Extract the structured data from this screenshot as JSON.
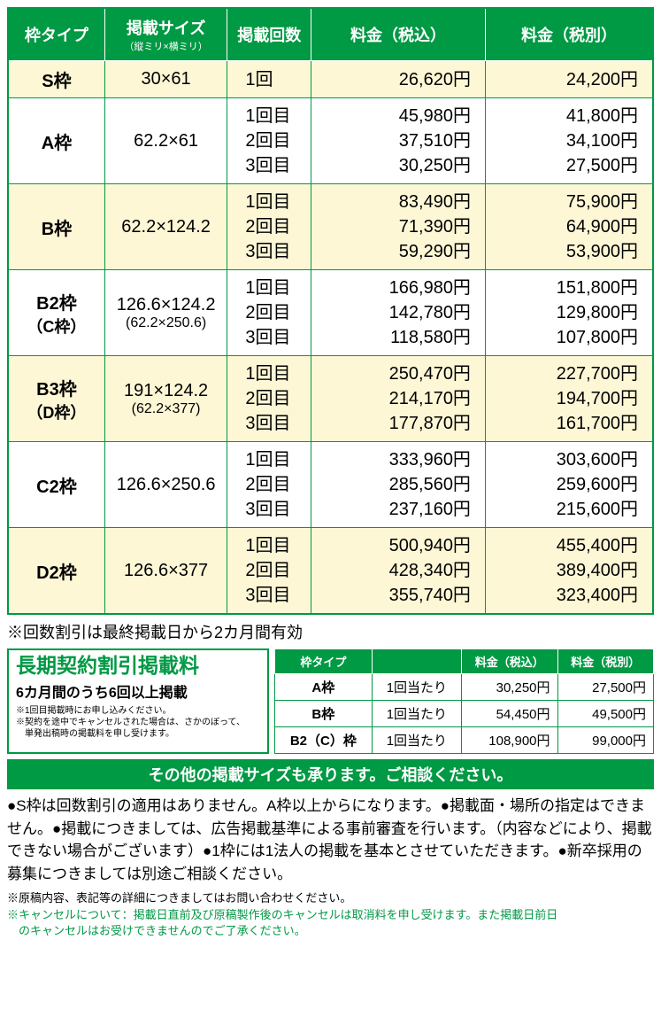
{
  "mainTable": {
    "headers": {
      "type": "枠タイプ",
      "size": "掲載サイズ",
      "sizeSub": "（縦ミリ×横ミリ）",
      "times": "掲載回数",
      "price1": "料金（税込）",
      "price2": "料金（税別）"
    },
    "rows": [
      {
        "alt": true,
        "type": "S枠",
        "size": "30×61",
        "times": [
          "1回"
        ],
        "price1": [
          "26,620円"
        ],
        "price2": [
          "24,200円"
        ]
      },
      {
        "alt": false,
        "type": "A枠",
        "size": "62.2×61",
        "times": [
          "1回目",
          "2回目",
          "3回目"
        ],
        "price1": [
          "45,980円",
          "37,510円",
          "30,250円"
        ],
        "price2": [
          "41,800円",
          "34,100円",
          "27,500円"
        ]
      },
      {
        "alt": true,
        "type": "B枠",
        "size": "62.2×124.2",
        "times": [
          "1回目",
          "2回目",
          "3回目"
        ],
        "price1": [
          "83,490円",
          "71,390円",
          "59,290円"
        ],
        "price2": [
          "75,900円",
          "64,900円",
          "53,900円"
        ]
      },
      {
        "alt": false,
        "type": "B2枠",
        "typeSub": "（C枠）",
        "size": "126.6×124.2",
        "sizeSub": "(62.2×250.6)",
        "times": [
          "1回目",
          "2回目",
          "3回目"
        ],
        "price1": [
          "166,980円",
          "142,780円",
          "118,580円"
        ],
        "price2": [
          "151,800円",
          "129,800円",
          "107,800円"
        ]
      },
      {
        "alt": true,
        "type": "B3枠",
        "typeSub": "（D枠）",
        "size": "191×124.2",
        "sizeSub": "(62.2×377)",
        "times": [
          "1回目",
          "2回目",
          "3回目"
        ],
        "price1": [
          "250,470円",
          "214,170円",
          "177,870円"
        ],
        "price2": [
          "227,700円",
          "194,700円",
          "161,700円"
        ]
      },
      {
        "alt": false,
        "type": "C2枠",
        "size": "126.6×250.6",
        "times": [
          "1回目",
          "2回目",
          "3回目"
        ],
        "price1": [
          "333,960円",
          "285,560円",
          "237,160円"
        ],
        "price2": [
          "303,600円",
          "259,600円",
          "215,600円"
        ]
      },
      {
        "alt": true,
        "type": "D2枠",
        "size": "126.6×377",
        "times": [
          "1回目",
          "2回目",
          "3回目"
        ],
        "price1": [
          "500,940円",
          "428,340円",
          "355,740円"
        ],
        "price2": [
          "455,400円",
          "389,400円",
          "323,400円"
        ]
      }
    ]
  },
  "note1": "※回数割引は最終掲載日から2カ月間有効",
  "longTerm": {
    "title": "長期契約割引掲載料",
    "sub": "6カ月間のうち6回以上掲載",
    "notes": [
      "※1回目掲載時にお申し込みください。",
      "※契約を途中でキャンセルされた場合は、さかのぼって、",
      "　単発出稿時の掲載料を申し受けます。"
    ],
    "headers": {
      "type": "枠タイプ",
      "price1": "料金（税込）",
      "price2": "料金（税別）"
    },
    "perLabel": "1回当たり",
    "rows": [
      {
        "type": "A枠",
        "price1": "30,250円",
        "price2": "27,500円"
      },
      {
        "type": "B枠",
        "price1": "54,450円",
        "price2": "49,500円"
      },
      {
        "type": "B2（C）枠",
        "price1": "108,900円",
        "price2": "99,000円"
      }
    ]
  },
  "banner": "その他の掲載サイズも承ります。ご相談ください。",
  "body": "●S枠は回数割引の適用はありません。A枠以上からになります。●掲載面・場所の指定はできません。●掲載につきましては、広告掲載基準による事前審査を行います。（内容などにより、掲載できない場合がございます）●1枠には1法人の掲載を基本とさせていただきます。●新卒採用の募集につきましては別途ご相談ください。",
  "fine1": "※原稿内容、表記等の詳細につきましてはお問い合わせください。",
  "fine2a": "※キャンセルについて：掲載日直前及び原稿製作後のキャンセルは取消料を申し受けます。また掲載日前日",
  "fine2b": "のキャンセルはお受けできませんのでご了承ください。"
}
